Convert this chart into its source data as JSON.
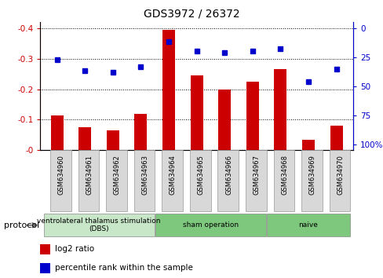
{
  "title": "GDS3972 / 26372",
  "samples": [
    "GSM634960",
    "GSM634961",
    "GSM634962",
    "GSM634963",
    "GSM634964",
    "GSM634965",
    "GSM634966",
    "GSM634967",
    "GSM634968",
    "GSM634969",
    "GSM634970"
  ],
  "log2_ratio": [
    -0.115,
    -0.075,
    -0.065,
    -0.12,
    -0.395,
    -0.245,
    -0.2,
    -0.225,
    -0.265,
    -0.035,
    -0.08
  ],
  "percentile_rank": [
    27,
    37,
    38,
    33,
    12,
    20,
    21,
    20,
    18,
    46,
    35
  ],
  "bar_color": "#cc0000",
  "dot_color": "#0000cc",
  "ylim_left": [
    0.0,
    -0.42
  ],
  "ylim_right": [
    105,
    -5
  ],
  "yticks_left": [
    0,
    -0.1,
    -0.2,
    -0.3,
    -0.4
  ],
  "yticks_right": [
    100,
    75,
    50,
    25,
    0
  ],
  "groups": [
    {
      "label": "ventrolateral thalamus stimulation\n(DBS)",
      "start": 0,
      "end": 3,
      "color": "#c8e6c8"
    },
    {
      "label": "sham operation",
      "start": 4,
      "end": 7,
      "color": "#7ec87e"
    },
    {
      "label": "naive",
      "start": 8,
      "end": 10,
      "color": "#7ec87e"
    }
  ],
  "protocol_label": "protocol",
  "legend_bar_label": "log2 ratio",
  "legend_dot_label": "percentile rank within the sample",
  "left_axis_color": "#cc0000",
  "right_axis_color": "#0000cc",
  "background_color": "#ffffff",
  "bar_width": 0.45
}
